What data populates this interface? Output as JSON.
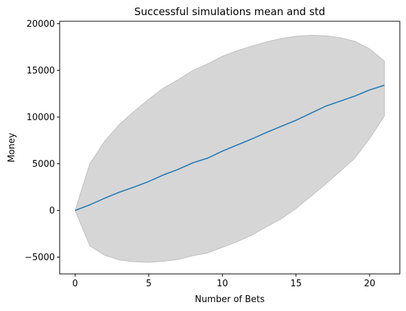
{
  "chart_data": {
    "type": "line",
    "title": "Successful simulations mean and std",
    "xlabel": "Number of Bets",
    "ylabel": "Money",
    "xlim": [
      -1.05,
      22.05
    ],
    "ylim": [
      -6800,
      20250
    ],
    "xticks": [
      0,
      5,
      10,
      15,
      20
    ],
    "yticks": [
      -5000,
      0,
      5000,
      10000,
      15000,
      20000
    ],
    "grid": false,
    "x": [
      0,
      1,
      2,
      3,
      4,
      5,
      6,
      7,
      8,
      9,
      10,
      11,
      12,
      13,
      14,
      15,
      16,
      17,
      18,
      19,
      20,
      21
    ],
    "series": [
      {
        "type": "line",
        "color": "#1f77b4",
        "values": [
          0,
          600,
          1300,
          1950,
          2500,
          3100,
          3800,
          4400,
          5100,
          5600,
          6350,
          7000,
          7650,
          8350,
          9000,
          9650,
          10400,
          11150,
          11700,
          12250,
          12900,
          13400
        ]
      },
      {
        "type": "band",
        "color": "#d6d6d6",
        "edge_color": "#bfbfbf",
        "upper": [
          0,
          5000,
          7400,
          9200,
          10600,
          11900,
          13100,
          14000,
          15000,
          15700,
          16500,
          17100,
          17600,
          18050,
          18400,
          18650,
          18750,
          18700,
          18500,
          18100,
          17300,
          16000
        ],
        "lower": [
          0,
          -3800,
          -4800,
          -5300,
          -5500,
          -5550,
          -5450,
          -5250,
          -4850,
          -4550,
          -3950,
          -3350,
          -2650,
          -1750,
          -900,
          200,
          1500,
          2800,
          4200,
          5600,
          7700,
          10100
        ]
      }
    ]
  }
}
